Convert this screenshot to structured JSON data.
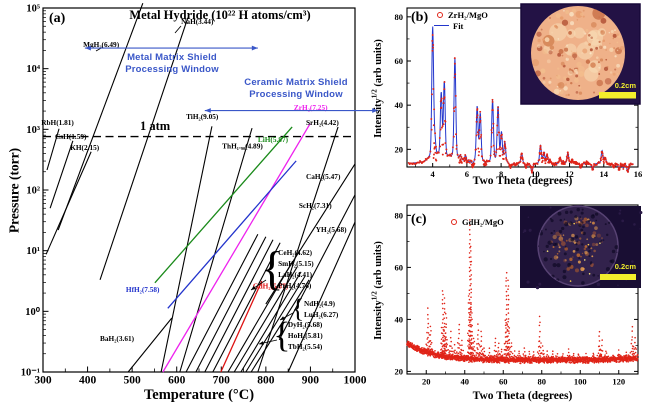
{
  "chart_data": [
    {
      "id": "a",
      "type": "line",
      "panel_label": "(a)",
      "title": "Metal Hydride (10²² H atoms/cm³)",
      "xlabel": "Temperature (°C)",
      "ylabel": "Pressure (torr)",
      "xlim": [
        300,
        1000
      ],
      "x_ticks": [
        300,
        400,
        500,
        600,
        700,
        800,
        900,
        1000
      ],
      "y_log_exponents": [
        -1,
        0,
        1,
        2,
        3,
        4,
        5
      ],
      "grid": false,
      "one_atm": {
        "label": "1 atm",
        "logP": 2.881
      },
      "accent_blue": "#3a57c8",
      "windows": [
        {
          "line1": "Metal Matrix Shield",
          "line2": "Processing Window",
          "T_range": [
            394,
            782
          ],
          "logP": 4.34
        },
        {
          "line1": "Ceramic Matrix Shield",
          "line2": "Processing Window",
          "T_range": [
            663,
            1052
          ],
          "logP": 3.31
        }
      ],
      "series": [
        {
          "label": "RbH(1.81)",
          "density": 1.81,
          "color": "#000000",
          "T": [
            309,
            336
          ],
          "logP": [
            2.33,
            3.01
          ],
          "label_T": 296,
          "label_logP": 3.07
        },
        {
          "label": "CsH(1.59)",
          "density": 1.59,
          "color": "#000000",
          "T": [
            316,
            367
          ],
          "logP": [
            1.7,
            2.81
          ],
          "label_T": 327,
          "label_logP": 2.84
        },
        {
          "label": "KH(2.15)",
          "density": 2.15,
          "color": "#000000",
          "T": [
            307,
            408
          ],
          "logP": [
            0.94,
            2.63
          ],
          "label_T": 361,
          "label_logP": 2.66
        },
        {
          "label": "MgH₂(6.49)",
          "density": 6.49,
          "color": "#000000",
          "T": [
            334,
            524
          ],
          "logP": [
            1.34,
            5.08
          ],
          "label_T": 390,
          "label_logP": 4.36
        },
        {
          "label": "NaH(3.44)",
          "density": 3.44,
          "color": "#000000",
          "T": [
            428,
            625
          ],
          "logP": [
            0.52,
            4.84
          ],
          "label_T": 610,
          "label_logP": 4.74
        },
        {
          "label": "TiH₂(9.05)",
          "density": 9.05,
          "color": "#000000",
          "T": [
            565,
            679
          ],
          "logP": [
            -1.0,
            3.05
          ],
          "label_T": 621,
          "label_logP": 3.17
        },
        {
          "label": "ThH₁.₉₀(4.89)",
          "density": 4.89,
          "color": "#000000",
          "T": [
            607,
            769
          ],
          "logP": [
            -1.0,
            3.02
          ],
          "label_T": 702,
          "label_logP": 2.68
        },
        {
          "label": "LiH(5.87)",
          "density": 5.87,
          "color": "#1a8a1a",
          "T": [
            551,
            859
          ],
          "logP": [
            0.47,
            3.04
          ],
          "label_T": 782,
          "label_logP": 2.79
        },
        {
          "label": "ZrH₂(7.25)",
          "density": 7.25,
          "color": "#ee22ee",
          "T": [
            569,
            899
          ],
          "logP": [
            -1.0,
            3.09
          ],
          "label_T": 863,
          "label_logP": 3.32
        },
        {
          "label": "HfH₂(7.58)",
          "density": 7.58,
          "color": "#2233cc",
          "T": [
            580,
            868
          ],
          "logP": [
            0.05,
            2.48
          ],
          "label_T": 486,
          "label_logP": 0.32
        },
        {
          "label": "SrH₂(4.42)",
          "density": 4.42,
          "color": "#000000",
          "T": [
            782,
            962
          ],
          "logP": [
            -1.0,
            3.04
          ],
          "label_T": 890,
          "label_logP": 3.07
        },
        {
          "label": "CaH₂(5.47)",
          "density": 5.47,
          "color": "#000000",
          "T": [
            800,
            1000
          ],
          "logP": [
            0.12,
            2.43
          ],
          "label_T": 890,
          "label_logP": 2.18
        },
        {
          "label": "ScH₂(7.31)",
          "density": 7.31,
          "color": "#000000",
          "T": [
            830,
            1000
          ],
          "logP": [
            -0.47,
            1.92
          ],
          "label_T": 874,
          "label_logP": 1.7
        },
        {
          "label": "YH₂(5.68)",
          "density": 5.68,
          "color": "#000000",
          "T": [
            850,
            1000
          ],
          "logP": [
            -1.0,
            1.47
          ],
          "label_T": 912,
          "label_logP": 1.31
        },
        {
          "label": "CeH₂(4.62)",
          "density": 4.62,
          "color": "#000000",
          "T": [
            621,
            782
          ],
          "logP": [
            -1.0,
            1.27
          ],
          "label_T": null,
          "label_logP": null
        },
        {
          "label": "SmH₂(5.15)",
          "density": 5.15,
          "color": "#000000",
          "T": [
            643,
            800
          ],
          "logP": [
            -1.0,
            1.23
          ],
          "label_T": null,
          "label_logP": null
        },
        {
          "label": "LaH₂(4.41)",
          "density": 4.41,
          "color": "#000000",
          "T": [
            663,
            816
          ],
          "logP": [
            -1.0,
            1.18
          ],
          "label_T": null,
          "label_logP": null
        },
        {
          "label": "PrH₂(4.76)",
          "density": 4.76,
          "color": "#000000",
          "T": [
            681,
            832
          ],
          "logP": [
            -1.0,
            1.13
          ],
          "label_T": null,
          "label_logP": null
        },
        {
          "label": "GdH₂(5.37)",
          "density": 5.37,
          "color": "#dd1111",
          "T": [
            699,
            791
          ],
          "logP": [
            -1.0,
            0.5
          ],
          "label_T": 771,
          "label_logP": 0.38
        },
        {
          "label": "NdH₂(4.9)",
          "density": 4.9,
          "color": "#000000",
          "T": [
            715,
            859
          ],
          "logP": [
            -1.0,
            0.81
          ],
          "label_T": null,
          "label_logP": null
        },
        {
          "label": "LuH₂(6.27)",
          "density": 6.27,
          "color": "#000000",
          "T": [
            729,
            870
          ],
          "logP": [
            -1.0,
            0.73
          ],
          "label_T": null,
          "label_logP": null
        },
        {
          "label": "DyH₂(5.68)",
          "density": 5.68,
          "color": "#000000",
          "T": [
            744,
            879
          ],
          "logP": [
            -1.0,
            0.65
          ],
          "label_T": null,
          "label_logP": null
        },
        {
          "label": "HoH₂(5.81)",
          "density": 5.81,
          "color": "#000000",
          "T": [
            755,
            888
          ],
          "logP": [
            -1.0,
            0.58
          ],
          "label_T": null,
          "label_logP": null
        },
        {
          "label": "TbH₂(5.54)",
          "density": 5.54,
          "color": "#000000",
          "T": [
            767,
            897
          ],
          "logP": [
            -1.0,
            0.52
          ],
          "label_T": null,
          "label_logP": null
        },
        {
          "label": "BaH₂(3.61)",
          "density": 3.61,
          "color": "#000000",
          "T": [
            491,
            589
          ],
          "logP": [
            -1.0,
            -0.11
          ],
          "label_T": 428,
          "label_logP": -0.49
        }
      ],
      "brace_groups": [
        {
          "labels": [
            "CeH₂(4.62)",
            "SmH₂(5.15)",
            "LaH₂(4.41)",
            "PrH₂(4.76)"
          ],
          "T": 814,
          "logP": 0.7
        },
        {
          "labels": [
            "NdH₂(4.9)",
            "LuH₂(6.27)"
          ],
          "T": 872,
          "logP": 0.04
        },
        {
          "labels": [
            "DyH₂(5.68)",
            "HoH₂(5.81)",
            "TbH₂(5.54)"
          ],
          "T": 836,
          "logP": -0.39
        }
      ]
    },
    {
      "id": "b",
      "type": "scatter-line",
      "panel_label": "(b)",
      "xlabel": "Two Theta (degrees)",
      "ylabel": {
        "base": "Intensity",
        "sup": "1/2",
        "unit": " (arb units)"
      },
      "xlim": [
        2.5,
        16
      ],
      "x_ticks": [
        4,
        6,
        8,
        10,
        12,
        14,
        16
      ],
      "ylim": [
        12,
        84
      ],
      "y_ticks": [
        20,
        40,
        60,
        80
      ],
      "legend": [
        {
          "label": "ZrH₂/MgO",
          "color": "#e02418",
          "marker": "circle"
        },
        {
          "label": "Fit",
          "color": "#2236cc",
          "marker": "line"
        }
      ],
      "baseline": 13.5,
      "peaks": [
        [
          4.0,
          70
        ],
        [
          4.12,
          21
        ],
        [
          4.5,
          41
        ],
        [
          4.68,
          46
        ],
        [
          5.3,
          57
        ],
        [
          5.62,
          15
        ],
        [
          5.92,
          16
        ],
        [
          6.35,
          12
        ],
        [
          6.6,
          37
        ],
        [
          6.78,
          34
        ],
        [
          7.05,
          13
        ],
        [
          7.5,
          40
        ],
        [
          7.82,
          37
        ],
        [
          8.02,
          26
        ],
        [
          8.22,
          22
        ],
        [
          8.55,
          12
        ],
        [
          8.85,
          13
        ],
        [
          9.2,
          18
        ],
        [
          9.45,
          12
        ],
        [
          9.8,
          10
        ],
        [
          10.3,
          21
        ],
        [
          10.5,
          18
        ],
        [
          10.68,
          17
        ],
        [
          10.85,
          15
        ],
        [
          11.1,
          13
        ],
        [
          11.45,
          16
        ],
        [
          11.62,
          14
        ],
        [
          11.9,
          18
        ],
        [
          12.15,
          15
        ],
        [
          12.32,
          14
        ],
        [
          12.65,
          12
        ],
        [
          13.0,
          14
        ],
        [
          13.35,
          11
        ],
        [
          13.9,
          19
        ],
        [
          14.08,
          16
        ],
        [
          14.38,
          13
        ],
        [
          14.6,
          12
        ],
        [
          14.9,
          11
        ],
        [
          15.15,
          12
        ],
        [
          15.4,
          10
        ]
      ],
      "inset": {
        "scale_label": "0.2cm",
        "scale_color": "#f2ee2c",
        "sample": "bright-mottled-disc"
      }
    },
    {
      "id": "c",
      "type": "scatter",
      "panel_label": "(c)",
      "xlabel": "Two Theta (degrees)",
      "ylabel": {
        "base": "Intensity",
        "sup": "1/2",
        "unit": " (arb units)"
      },
      "xlim": [
        10,
        130
      ],
      "x_ticks": [
        20,
        40,
        60,
        80,
        100,
        120
      ],
      "ylim": [
        19,
        84
      ],
      "y_ticks": [
        20,
        40,
        60,
        80
      ],
      "legend": [
        {
          "label": "GdH₂/MgO",
          "color": "#e02418",
          "marker": "circle"
        }
      ],
      "baseline_params": {
        "flat": 24.2,
        "decay_amp": 6.8,
        "decay_len": 14,
        "rise_amp": 0.9
      },
      "peaks": [
        [
          21,
          44
        ],
        [
          22.3,
          37
        ],
        [
          28.6,
          51
        ],
        [
          29.4,
          48
        ],
        [
          30.3,
          42
        ],
        [
          32.8,
          35
        ],
        [
          34.8,
          30
        ],
        [
          37,
          38
        ],
        [
          38.6,
          32
        ],
        [
          42.6,
          78
        ],
        [
          43.3,
          68
        ],
        [
          44.8,
          33
        ],
        [
          47,
          38
        ],
        [
          48.6,
          35
        ],
        [
          50.2,
          29
        ],
        [
          53,
          29
        ],
        [
          56,
          33
        ],
        [
          57.6,
          31
        ],
        [
          59,
          28.5
        ],
        [
          61.6,
          58
        ],
        [
          62.6,
          55
        ],
        [
          64.2,
          31
        ],
        [
          66,
          27.5
        ],
        [
          68,
          28
        ],
        [
          71,
          29
        ],
        [
          73.5,
          27.5
        ],
        [
          76,
          27.5
        ],
        [
          79,
          41
        ],
        [
          80.6,
          30
        ],
        [
          83,
          27.5
        ],
        [
          85.5,
          28
        ],
        [
          88,
          27
        ],
        [
          91,
          26.5
        ],
        [
          94,
          29
        ],
        [
          96.5,
          26.5
        ],
        [
          99,
          27
        ],
        [
          103,
          26.5
        ],
        [
          107,
          27
        ],
        [
          110,
          35
        ],
        [
          111.2,
          32
        ],
        [
          113.5,
          28
        ],
        [
          117,
          26.5
        ],
        [
          120,
          28
        ],
        [
          124,
          27
        ],
        [
          127,
          37
        ],
        [
          128.6,
          33
        ]
      ],
      "inset": {
        "scale_label": "0.2cm",
        "scale_color": "#f2ee2c",
        "sample": "dark-mottled-disc"
      }
    }
  ]
}
